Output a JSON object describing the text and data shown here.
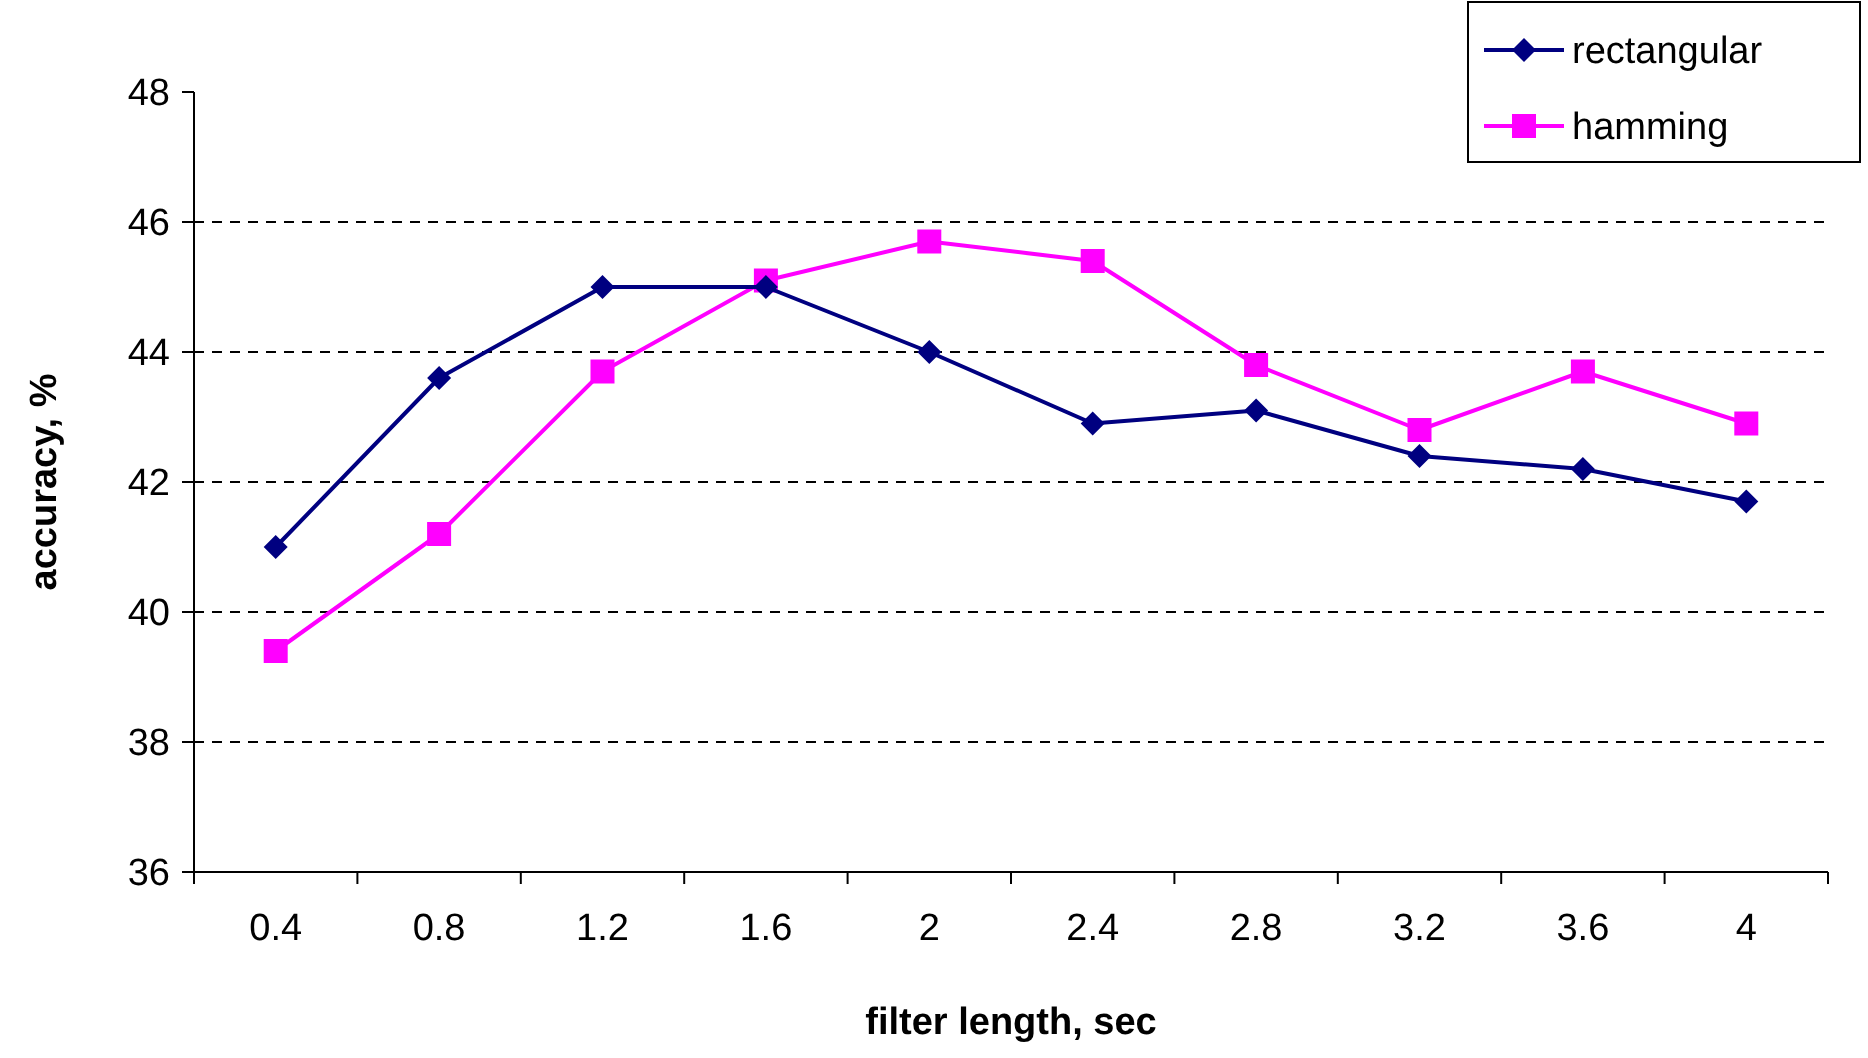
{
  "chart_data": {
    "type": "line",
    "xlabel": "filter length, sec",
    "ylabel": "accuracy, %",
    "categories": [
      "0.4",
      "0.8",
      "1.2",
      "1.6",
      "2",
      "2.4",
      "2.8",
      "3.2",
      "3.6",
      "4"
    ],
    "series": [
      {
        "name": "rectangular",
        "color": "#000080",
        "marker": "diamond",
        "values": [
          41.0,
          43.6,
          45.0,
          45.0,
          44.0,
          42.9,
          43.1,
          42.4,
          42.2,
          41.7
        ]
      },
      {
        "name": "hamming",
        "color": "#ff00ff",
        "marker": "square",
        "values": [
          39.4,
          41.2,
          43.7,
          45.1,
          45.7,
          45.4,
          43.8,
          42.8,
          43.7,
          42.9
        ]
      }
    ],
    "ylim": [
      36,
      48
    ],
    "yticks": [
      36,
      38,
      40,
      42,
      44,
      46,
      48
    ],
    "grid": "y",
    "legend": "top right",
    "line_style": "solid"
  }
}
